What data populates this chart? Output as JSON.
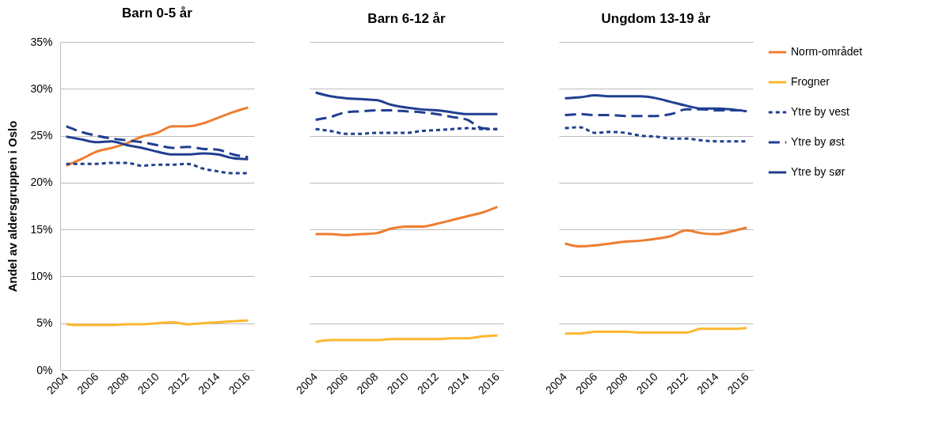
{
  "chart_data": [
    {
      "type": "line",
      "title": "Barn 0-5 år",
      "ylabel": "Andel av aldersgruppen i Oslo",
      "x": [
        2004,
        2005,
        2006,
        2007,
        2008,
        2009,
        2010,
        2011,
        2012,
        2013,
        2014,
        2015,
        2016
      ],
      "xlim": [
        2003.6,
        2016.4
      ],
      "xticks": [
        2004,
        2006,
        2008,
        2010,
        2012,
        2014,
        2016
      ],
      "ylim": [
        0,
        35
      ],
      "yticks": [
        {
          "value": 0,
          "label": "0%"
        },
        {
          "value": 5,
          "label": "5%"
        },
        {
          "value": 10,
          "label": "10%"
        },
        {
          "value": 15,
          "label": "15%"
        },
        {
          "value": 20,
          "label": "20%"
        },
        {
          "value": 25,
          "label": "25%"
        },
        {
          "value": 30,
          "label": "30%"
        },
        {
          "value": 35,
          "label": "35%"
        }
      ],
      "grid": "y",
      "series": [
        {
          "color": "#ed7d31",
          "values": [
            21.8,
            22.5,
            23.3,
            23.7,
            24.2,
            24.9,
            25.3,
            26.0,
            26.0,
            26.3,
            26.9,
            27.5,
            28.0
          ]
        },
        {
          "color": "#fbb72e",
          "values": [
            4.9,
            4.8,
            4.8,
            4.8,
            4.9,
            4.9,
            5.0,
            5.1,
            4.9,
            5.0,
            5.1,
            5.2,
            5.3
          ]
        },
        {
          "color": "#203f91",
          "line_style": "dotted",
          "values": [
            22.0,
            22.0,
            22.0,
            22.1,
            22.1,
            21.8,
            21.9,
            21.9,
            22.0,
            21.5,
            21.2,
            21.0,
            21.0
          ]
        },
        {
          "color": "#203f91",
          "line_style": "dashed",
          "values": [
            26.0,
            25.4,
            25.0,
            24.7,
            24.5,
            24.3,
            24.0,
            23.7,
            23.8,
            23.6,
            23.5,
            23.0,
            22.7
          ]
        },
        {
          "color": "#203f91",
          "values": [
            24.9,
            24.6,
            24.3,
            24.4,
            24.0,
            23.7,
            23.3,
            23.0,
            23.0,
            23.1,
            23.0,
            22.6,
            22.5
          ]
        }
      ]
    },
    {
      "type": "line",
      "title": "Barn 6-12 år",
      "tick_labels": "x",
      "x": [
        2004,
        2005,
        2006,
        2007,
        2008,
        2009,
        2010,
        2011,
        2012,
        2013,
        2014,
        2015,
        2016
      ],
      "xlim": [
        2003.6,
        2016.4
      ],
      "xticks": [
        2004,
        2006,
        2008,
        2010,
        2012,
        2014,
        2016
      ],
      "ylim": [
        0,
        35
      ],
      "yticks": [
        0,
        5,
        10,
        15,
        20,
        25,
        30,
        35
      ],
      "grid": "y",
      "series": [
        {
          "color": "#ed7d31",
          "values": [
            14.5,
            14.5,
            14.4,
            14.5,
            14.6,
            15.1,
            15.3,
            15.3,
            15.6,
            16.0,
            16.4,
            16.8,
            17.4
          ]
        },
        {
          "color": "#fbb72e",
          "values": [
            3.0,
            3.2,
            3.2,
            3.2,
            3.2,
            3.3,
            3.3,
            3.3,
            3.3,
            3.4,
            3.4,
            3.6,
            3.7
          ]
        },
        {
          "color": "#203f91",
          "line_style": "dotted",
          "values": [
            25.7,
            25.5,
            25.2,
            25.2,
            25.3,
            25.3,
            25.3,
            25.5,
            25.6,
            25.7,
            25.8,
            25.7,
            25.7
          ]
        },
        {
          "color": "#203f91",
          "line_style": "dashed",
          "values": [
            26.7,
            27.0,
            27.5,
            27.6,
            27.7,
            27.7,
            27.6,
            27.5,
            27.3,
            27.0,
            26.7,
            25.8,
            25.7
          ]
        },
        {
          "color": "#203f91",
          "values": [
            29.6,
            29.2,
            29.0,
            28.9,
            28.8,
            28.3,
            28.0,
            27.8,
            27.7,
            27.5,
            27.3,
            27.3,
            27.3
          ]
        }
      ]
    },
    {
      "type": "line",
      "title": "Ungdom 13-19 år",
      "tick_labels": "x",
      "legend": "right",
      "x": [
        2004,
        2005,
        2006,
        2007,
        2008,
        2009,
        2010,
        2011,
        2012,
        2013,
        2014,
        2015,
        2016
      ],
      "xlim": [
        2003.6,
        2016.4
      ],
      "xticks": [
        2004,
        2006,
        2008,
        2010,
        2012,
        2014,
        2016
      ],
      "ylim": [
        0,
        35
      ],
      "yticks": [
        0,
        5,
        10,
        15,
        20,
        25,
        30,
        35
      ],
      "grid": "y",
      "series": [
        {
          "name": "Norm-området",
          "color": "#ed7d31",
          "values": [
            13.5,
            13.2,
            13.3,
            13.5,
            13.7,
            13.8,
            14.0,
            14.3,
            14.9,
            14.6,
            14.5,
            14.8,
            15.2
          ]
        },
        {
          "name": "Frogner",
          "color": "#fbb72e",
          "values": [
            3.9,
            3.9,
            4.1,
            4.1,
            4.1,
            4.0,
            4.0,
            4.0,
            4.0,
            4.4,
            4.4,
            4.4,
            4.5
          ]
        },
        {
          "name": "Ytre by vest",
          "color": "#203f91",
          "line_style": "dotted",
          "values": [
            25.8,
            25.9,
            25.3,
            25.4,
            25.3,
            25.0,
            24.9,
            24.7,
            24.7,
            24.5,
            24.4,
            24.4,
            24.4
          ]
        },
        {
          "name": "Ytre by øst",
          "color": "#203f91",
          "line_style": "dashed",
          "values": [
            27.2,
            27.3,
            27.2,
            27.2,
            27.1,
            27.1,
            27.1,
            27.3,
            27.8,
            27.8,
            27.7,
            27.7,
            27.7
          ]
        },
        {
          "name": "Ytre by sør",
          "color": "#203f91",
          "values": [
            29.0,
            29.1,
            29.3,
            29.2,
            29.2,
            29.2,
            29.0,
            28.6,
            28.2,
            27.9,
            27.9,
            27.8,
            27.6
          ]
        }
      ]
    }
  ]
}
